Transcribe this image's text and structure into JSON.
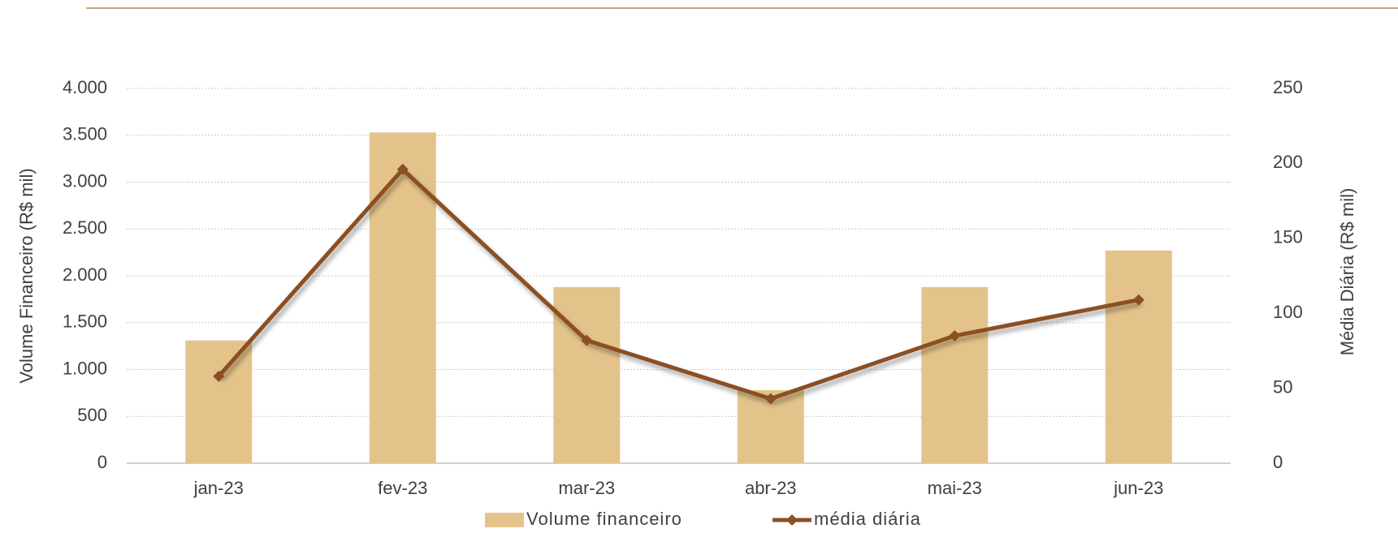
{
  "chart_data": {
    "type": "bar-line",
    "categories": [
      "jan-23",
      "fev-23",
      "mar-23",
      "abr-23",
      "mai-23",
      "jun-23"
    ],
    "series": [
      {
        "name": "Volume financeiro",
        "type": "bar",
        "color": "#e4c38a",
        "values": [
          1310,
          3530,
          1880,
          780,
          1880,
          2270
        ]
      },
      {
        "name": "média diária",
        "type": "line",
        "color": "#8b4f24",
        "axis": "y2",
        "values": [
          58,
          196,
          82,
          43,
          85,
          109
        ]
      }
    ],
    "ylabel": "Volume Financeiro  (R$ mil)",
    "y2label": "Média Diária  (R$ mil)",
    "ylim": [
      0,
      4000
    ],
    "yticks": [
      0,
      500,
      {
        "value": 1000,
        "label": "1.000"
      },
      {
        "value": 1500,
        "label": "1.500"
      },
      {
        "value": 2000,
        "label": "2.000"
      },
      {
        "value": 2500,
        "label": "2.500"
      },
      {
        "value": 3000,
        "label": "3.000"
      },
      {
        "value": 3500,
        "label": "3.500"
      },
      {
        "value": 4000,
        "label": "4.000"
      }
    ],
    "y2lim": [
      0,
      250
    ],
    "y2ticks": [
      0,
      50,
      100,
      150,
      200,
      250
    ],
    "grid": true,
    "legend": "bottom"
  }
}
